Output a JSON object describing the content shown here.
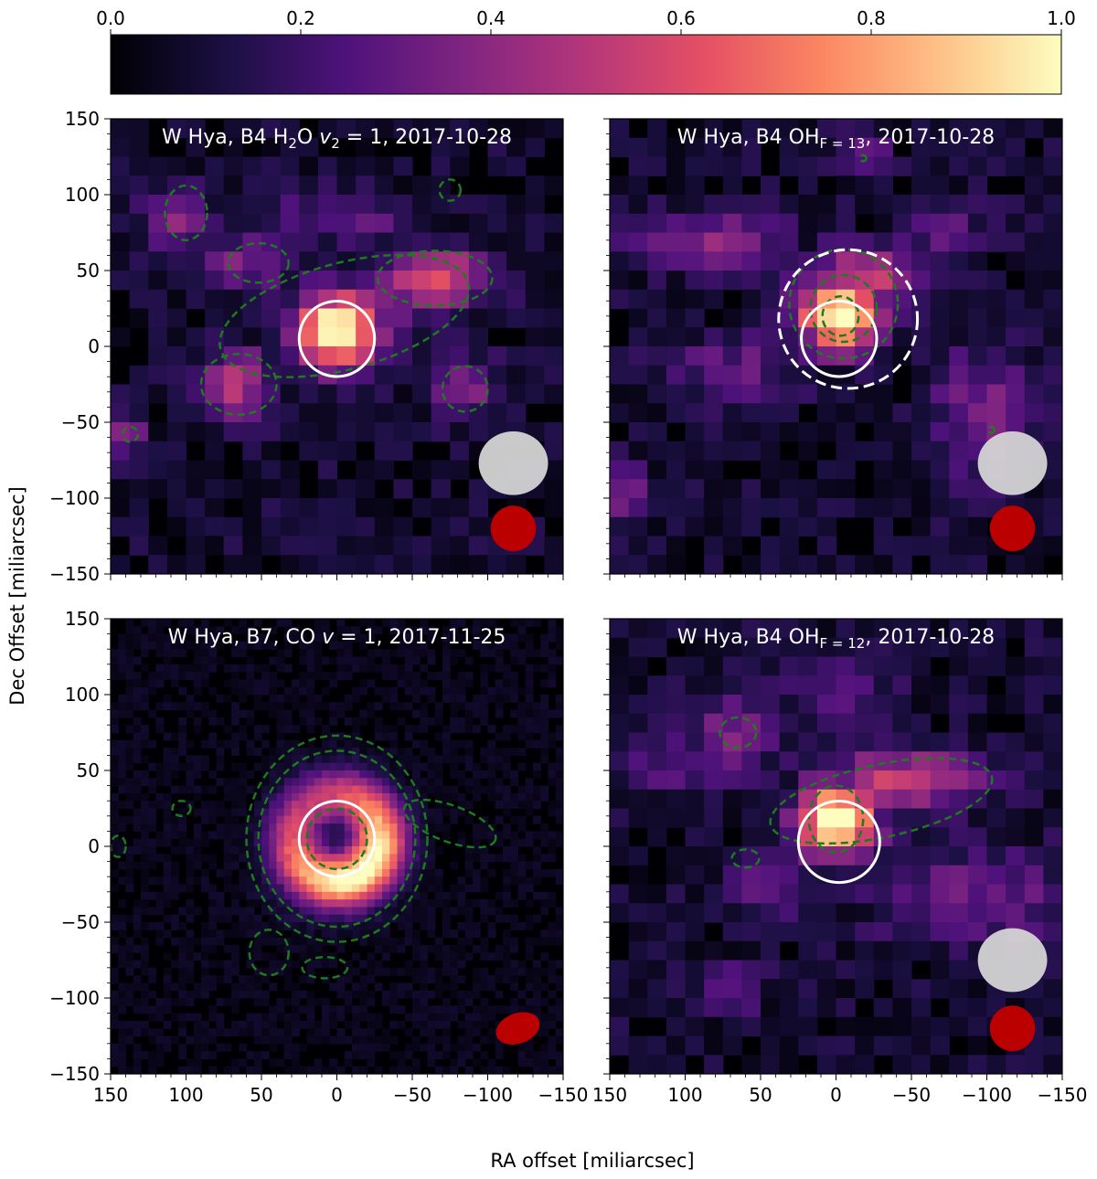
{
  "colorbar": {
    "ticks": [
      "0.0",
      "0.2",
      "0.4",
      "0.6",
      "0.8",
      "1.0"
    ],
    "colormap": "magma",
    "stops": [
      "#000004",
      "#1c1044",
      "#4f127b",
      "#812581",
      "#b5367a",
      "#e55064",
      "#fb8761",
      "#fec287",
      "#fcfdbf"
    ]
  },
  "axes": {
    "xlabel": "RA offset [miliarcsec]",
    "ylabel": "Dec Offset [miliarcsec]",
    "x_ticks": [
      "150",
      "100",
      "50",
      "0",
      "−50",
      "−100",
      "−150"
    ],
    "y_ticks": [
      "150",
      "100",
      "50",
      "0",
      "−50",
      "−100",
      "−150"
    ],
    "xlim": [
      150,
      -150
    ],
    "ylim": [
      -150,
      150
    ]
  },
  "chart_data": [
    {
      "type": "heatmap",
      "title_parts": [
        "W Hya, B4 H",
        "2",
        "O ",
        "v",
        "2",
        " = 1, 2017-10-28"
      ],
      "star_circle": {
        "x": 0,
        "y": 5,
        "r": 25
      },
      "dashed_circle": null,
      "beam_grey": {
        "x": -117,
        "y": -77,
        "rx": 23,
        "ry": 21
      },
      "beam_red": {
        "x": -117,
        "y": -120,
        "rx": 15,
        "ry": 15
      },
      "blobs": [
        {
          "x": 0,
          "y": 10,
          "sx": 20,
          "sy": 17,
          "a": 1.0
        },
        {
          "x": -65,
          "y": 45,
          "sx": 28,
          "sy": 14,
          "a": 0.5
        },
        {
          "x": -25,
          "y": 30,
          "sx": 24,
          "sy": 14,
          "a": 0.35
        },
        {
          "x": 65,
          "y": -25,
          "sx": 16,
          "sy": 16,
          "a": 0.4
        },
        {
          "x": -85,
          "y": -28,
          "sx": 15,
          "sy": 15,
          "a": 0.3
        },
        {
          "x": 60,
          "y": 55,
          "sx": 20,
          "sy": 14,
          "a": 0.28
        },
        {
          "x": 105,
          "y": 85,
          "sx": 16,
          "sy": 16,
          "a": 0.28
        },
        {
          "x": -5,
          "y": 85,
          "sx": 35,
          "sy": 12,
          "a": 0.2
        },
        {
          "x": 140,
          "y": -60,
          "sx": 10,
          "sy": 10,
          "a": 0.28
        }
      ],
      "contours": [
        {
          "x": -5,
          "y": 20,
          "rx": 85,
          "ry": 35,
          "rot": -15
        },
        {
          "x": -65,
          "y": 45,
          "rx": 38,
          "ry": 18,
          "rot": 0
        },
        {
          "x": 65,
          "y": -25,
          "rx": 25,
          "ry": 20,
          "rot": 0
        },
        {
          "x": -85,
          "y": -28,
          "rx": 15,
          "ry": 15,
          "rot": 0
        },
        {
          "x": 52,
          "y": 55,
          "rx": 20,
          "ry": 13,
          "rot": 0
        },
        {
          "x": 100,
          "y": 88,
          "rx": 14,
          "ry": 18,
          "rot": 0
        },
        {
          "x": -75,
          "y": 103,
          "rx": 7,
          "ry": 7,
          "rot": 0
        },
        {
          "x": 137,
          "y": -58,
          "rx": 5,
          "ry": 5,
          "rot": 0
        }
      ]
    },
    {
      "type": "heatmap",
      "title_parts": [
        "W Hya, B4 OH",
        "F = 13",
        ", 2017-10-28"
      ],
      "star_circle": {
        "x": -2,
        "y": 5,
        "r": 25
      },
      "dashed_circle": {
        "x": -8,
        "y": 18,
        "r": 46
      },
      "beam_grey": {
        "x": -117,
        "y": -77,
        "rx": 23,
        "ry": 21
      },
      "beam_red": {
        "x": -117,
        "y": -120,
        "rx": 15,
        "ry": 15
      },
      "blobs": [
        {
          "x": -2,
          "y": 22,
          "sx": 18,
          "sy": 17,
          "a": 1.0
        },
        {
          "x": -20,
          "y": 45,
          "sx": 30,
          "sy": 14,
          "a": 0.45
        },
        {
          "x": 90,
          "y": 70,
          "sx": 38,
          "sy": 14,
          "a": 0.3
        },
        {
          "x": 70,
          "y": -15,
          "sx": 30,
          "sy": 16,
          "a": 0.22
        },
        {
          "x": -100,
          "y": -45,
          "sx": 25,
          "sy": 30,
          "a": 0.28
        },
        {
          "x": -20,
          "y": 125,
          "sx": 12,
          "sy": 10,
          "a": 0.25
        },
        {
          "x": 140,
          "y": -95,
          "sx": 12,
          "sy": 15,
          "a": 0.25
        },
        {
          "x": -70,
          "y": 75,
          "sx": 22,
          "sy": 12,
          "a": 0.2
        }
      ],
      "contours": [
        {
          "x": -5,
          "y": 25,
          "rx": 22,
          "ry": 22,
          "rot": 0
        },
        {
          "x": -3,
          "y": 20,
          "rx": 12,
          "ry": 13,
          "rot": 0
        },
        {
          "x": -5,
          "y": 28,
          "rx": 36,
          "ry": 36,
          "rot": 0
        },
        {
          "x": -18,
          "y": 124,
          "rx": 2,
          "ry": 2,
          "rot": 0
        },
        {
          "x": -103,
          "y": -55,
          "rx": 2,
          "ry": 2,
          "rot": 0
        }
      ]
    },
    {
      "type": "heatmap",
      "title_parts": [
        "W Hya, B7, CO ",
        "v",
        " = 1, 2017-11-25"
      ],
      "star_circle": {
        "x": 0,
        "y": 5,
        "r": 25
      },
      "dashed_circle": null,
      "beam_grey": null,
      "beam_red": {
        "x": -120,
        "y": -120,
        "rx": 15,
        "ry": 10
      },
      "ring": {
        "x": 0,
        "y": 5,
        "r": 28,
        "w": 13,
        "a": 1.0
      },
      "blobs": [
        {
          "x": 5,
          "y": -30,
          "sx": 22,
          "sy": 12,
          "a": 0.35
        },
        {
          "x": -5,
          "y": 40,
          "sx": 18,
          "sy": 10,
          "a": 0.3
        }
      ],
      "contours": [
        {
          "x": 0,
          "y": 5,
          "rx": 52,
          "ry": 58,
          "rot": 0
        },
        {
          "x": 0,
          "y": 5,
          "rx": 60,
          "ry": 68,
          "rot": 0
        },
        {
          "x": 0,
          "y": 5,
          "rx": 20,
          "ry": 20,
          "rot": 0
        },
        {
          "x": -75,
          "y": 15,
          "rx": 32,
          "ry": 12,
          "rot": 20
        },
        {
          "x": 45,
          "y": -70,
          "rx": 13,
          "ry": 15,
          "rot": 0
        },
        {
          "x": 103,
          "y": 25,
          "rx": 6,
          "ry": 5,
          "rot": 0
        },
        {
          "x": 8,
          "y": -80,
          "rx": 15,
          "ry": 7,
          "rot": 0
        },
        {
          "x": 145,
          "y": 0,
          "rx": 5,
          "ry": 7,
          "rot": 0
        }
      ]
    },
    {
      "type": "heatmap",
      "title_parts": [
        "W Hya, B4 OH",
        "F = 12",
        ", 2017-10-28"
      ],
      "star_circle": {
        "x": -2,
        "y": 3,
        "r": 27
      },
      "dashed_circle": null,
      "beam_grey": {
        "x": -117,
        "y": -75,
        "rx": 23,
        "ry": 21
      },
      "beam_red": {
        "x": -117,
        "y": -120,
        "rx": 15,
        "ry": 15
      },
      "blobs": [
        {
          "x": 0,
          "y": 18,
          "sx": 18,
          "sy": 17,
          "a": 1.0
        },
        {
          "x": -45,
          "y": 45,
          "sx": 40,
          "sy": 14,
          "a": 0.45
        },
        {
          "x": 70,
          "y": 75,
          "sx": 20,
          "sy": 16,
          "a": 0.3
        },
        {
          "x": 90,
          "y": 55,
          "sx": 35,
          "sy": 14,
          "a": 0.22
        },
        {
          "x": -95,
          "y": -35,
          "sx": 45,
          "sy": 22,
          "a": 0.25
        },
        {
          "x": 0,
          "y": 100,
          "sx": 30,
          "sy": 18,
          "a": 0.15
        },
        {
          "x": 70,
          "y": -95,
          "sx": 15,
          "sy": 12,
          "a": 0.2
        },
        {
          "x": 40,
          "y": -25,
          "sx": 20,
          "sy": 14,
          "a": 0.22
        }
      ],
      "contours": [
        {
          "x": -30,
          "y": 30,
          "rx": 75,
          "ry": 24,
          "rot": -12
        },
        {
          "x": 0,
          "y": 18,
          "rx": 18,
          "ry": 22,
          "rot": 0
        },
        {
          "x": 65,
          "y": 75,
          "rx": 12,
          "ry": 10,
          "rot": 0
        },
        {
          "x": 60,
          "y": -8,
          "rx": 9,
          "ry": 6,
          "rot": 0
        }
      ]
    }
  ]
}
